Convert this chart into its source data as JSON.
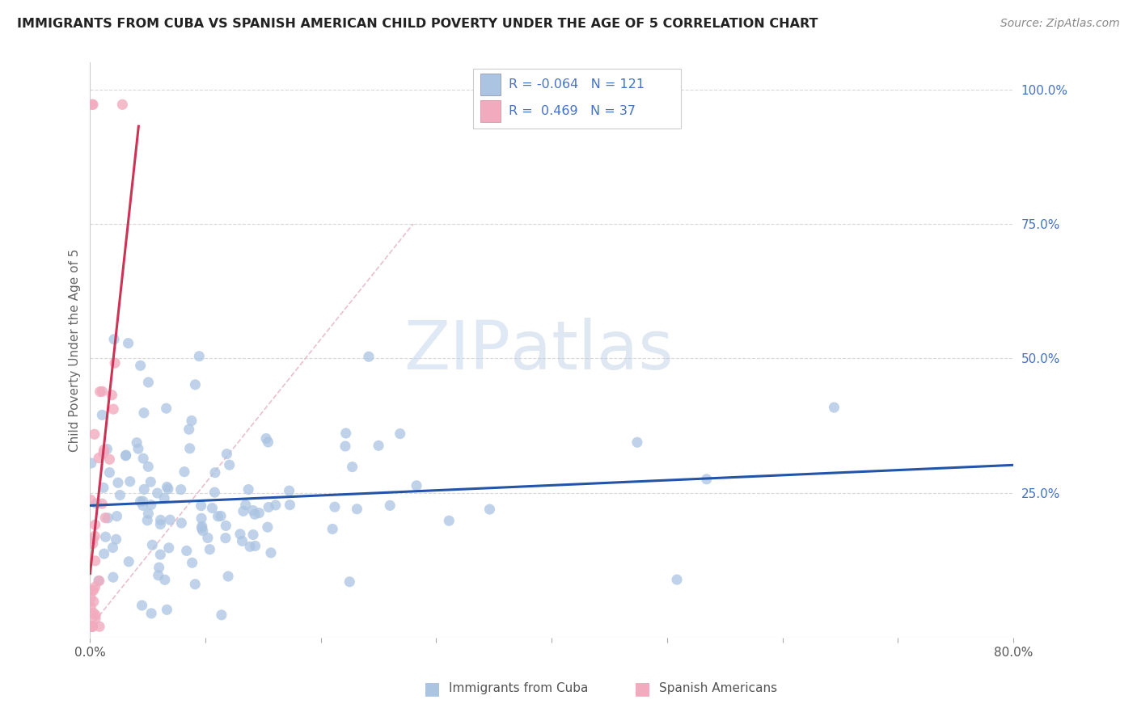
{
  "title": "IMMIGRANTS FROM CUBA VS SPANISH AMERICAN CHILD POVERTY UNDER THE AGE OF 5 CORRELATION CHART",
  "source": "Source: ZipAtlas.com",
  "ylabel": "Child Poverty Under the Age of 5",
  "xlim": [
    0.0,
    0.8
  ],
  "ylim": [
    -0.02,
    1.05
  ],
  "blue_color": "#aac4e2",
  "pink_color": "#f2aabe",
  "blue_line_color": "#2255aa",
  "pink_line_color": "#cc3355",
  "legend_blue_label": "Immigrants from Cuba",
  "legend_pink_label": "Spanish Americans",
  "R_blue": -0.064,
  "N_blue": 121,
  "R_pink": 0.469,
  "N_pink": 37,
  "watermark_zip": "ZIP",
  "watermark_atlas": "atlas",
  "yticks_right": [
    0.25,
    0.5,
    0.75,
    1.0
  ],
  "yticklabels_right": [
    "25.0%",
    "50.0%",
    "75.0%",
    "100.0%"
  ]
}
